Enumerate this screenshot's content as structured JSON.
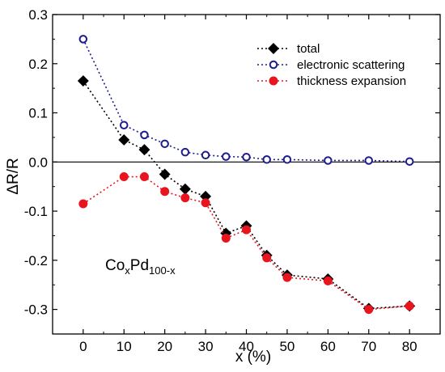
{
  "chart_data": {
    "type": "line",
    "xlabel": "x (%)",
    "ylabel": "ΔR/R",
    "xlim": [
      -7.5,
      87.5
    ],
    "ylim": [
      -0.35,
      0.3
    ],
    "xticks": [
      0,
      10,
      20,
      30,
      40,
      50,
      60,
      70,
      80
    ],
    "yticks": [
      -0.3,
      -0.2,
      -0.1,
      0.0,
      0.1,
      0.2,
      0.3
    ],
    "ytick_labels": [
      "-0.3",
      "-0.2",
      "-0.1",
      "0.0",
      "0.1",
      "0.2",
      "0.3"
    ],
    "zero_line": true,
    "grid": false,
    "legend_position": "top-right",
    "annotation": {
      "base1": "Co",
      "sub1": "x",
      "base2": "Pd",
      "sub2": "100-x"
    },
    "series": [
      {
        "name": "total",
        "color": "#000000",
        "marker": "diamond-filled",
        "x": [
          0,
          10,
          15,
          20,
          25,
          30,
          35,
          40,
          45,
          50,
          60,
          70,
          80
        ],
        "y": [
          0.165,
          0.045,
          0.025,
          -0.025,
          -0.055,
          -0.07,
          -0.145,
          -0.13,
          -0.19,
          -0.23,
          -0.238,
          -0.298,
          -0.293
        ]
      },
      {
        "name": "electronic scattering",
        "color": "#1c1c8c",
        "marker": "circle-open",
        "x": [
          0,
          10,
          15,
          20,
          25,
          30,
          35,
          40,
          45,
          50,
          60,
          70,
          80
        ],
        "y": [
          0.25,
          0.075,
          0.055,
          0.037,
          0.02,
          0.014,
          0.011,
          0.01,
          0.005,
          0.005,
          0.003,
          0.003,
          0.001
        ]
      },
      {
        "name": "thickness expansion",
        "color": "#e8141e",
        "marker": "circle-filled",
        "x": [
          0,
          10,
          15,
          20,
          25,
          30,
          35,
          40,
          45,
          50,
          60,
          70,
          80
        ],
        "y": [
          -0.085,
          -0.03,
          -0.03,
          -0.06,
          -0.073,
          -0.083,
          -0.155,
          -0.138,
          -0.195,
          -0.235,
          -0.242,
          -0.3,
          -0.293
        ]
      }
    ]
  }
}
